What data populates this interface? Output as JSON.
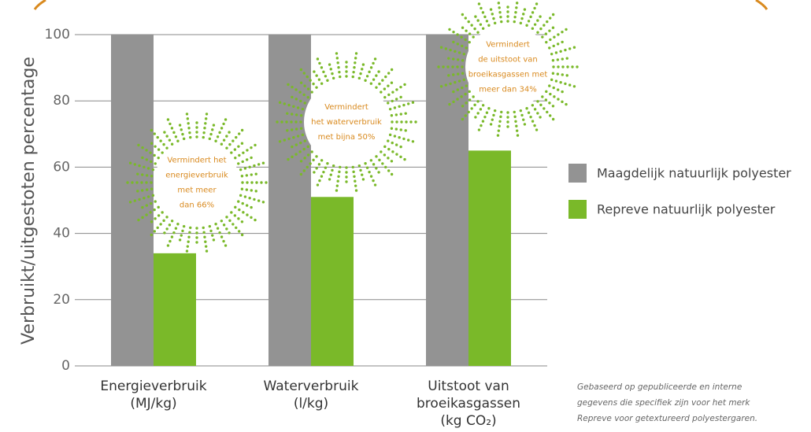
{
  "chart_data": {
    "type": "bar",
    "y_label": "Verbruikt/uitgestoten percentage",
    "categories": [
      [
        "Energieverbruik",
        "(MJ/kg)"
      ],
      [
        "Waterverbruik",
        "(l/kg)"
      ],
      [
        "Uitstoot van",
        "broeikasgassen",
        "(kg CO₂)"
      ]
    ],
    "series": [
      {
        "name": "Maagdelijk natuurlijk polyester",
        "color": "#939393",
        "values": [
          100,
          100,
          100
        ]
      },
      {
        "name": "Repreve natuurlijk polyester",
        "color": "#7ab929",
        "values": [
          34,
          51,
          65
        ]
      }
    ],
    "ylim": [
      0,
      100
    ],
    "yticks": [
      0,
      20,
      40,
      60,
      80,
      100
    ],
    "grid": true,
    "legend": "right",
    "annotations": [
      [
        "Vermindert het",
        "energieverbruik",
        "met meer",
        "dan 66%"
      ],
      [
        "Vermindert",
        "het waterverbruik",
        "met bijna 50%"
      ],
      [
        "Vermindert",
        "de uitstoot van",
        "broeikasgassen met",
        "meer dan 34%"
      ]
    ],
    "footnote": [
      "Gebaseerd op gepubliceerde en interne",
      "gegevens die specifiek zijn voor het merk",
      "Repreve voor getextureerd polyestergaren."
    ]
  }
}
